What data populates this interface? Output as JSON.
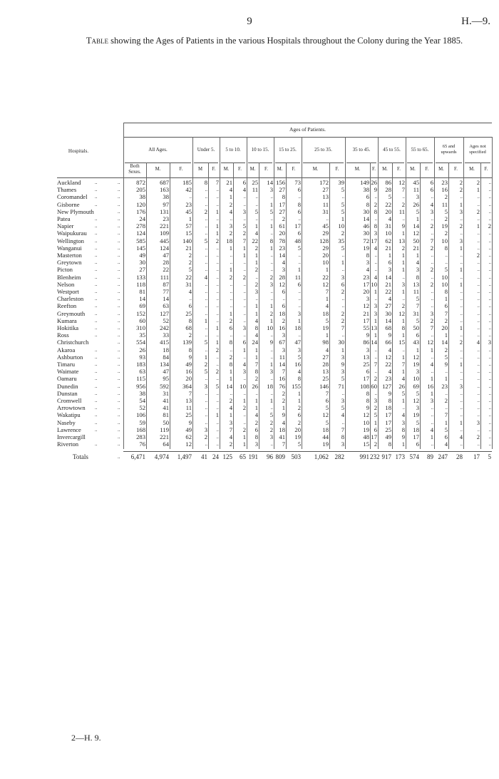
{
  "page": {
    "number": "9",
    "reference": "H.—9.",
    "footer": "2—H. 9."
  },
  "title": {
    "lead": "Table",
    "text": " showing the Ages of Patients in the various Hospitals throughout the Colony during the Year 1885."
  },
  "table": {
    "super_header": "Ages of Patients.",
    "hospitals_header": "Hospitals.",
    "groups": [
      "All Ages.",
      "Under 5.",
      "5 to 10.",
      "10 to 15.",
      "15 to 25.",
      "25 to 35.",
      "35 to 45.",
      "45 to 55.",
      "55 to 65.",
      "65 and upwards",
      "Ages not specified"
    ],
    "subheaders": [
      "Both Sexes.",
      "M.",
      "F.",
      "M",
      "F.",
      "M.",
      "F.",
      "M.",
      "F.",
      "M.",
      "F.",
      "M.",
      "F.",
      "M.",
      "F.",
      "M.",
      "F.",
      "M.",
      "F.",
      "M.",
      "F.",
      "M.",
      "F."
    ],
    "leader": "..",
    "rows": [
      {
        "name": "Auckland",
        "values": [
          "872",
          "687",
          "185",
          "8",
          "7",
          "21",
          "6",
          "25",
          "14",
          "156",
          "73",
          "172",
          "39",
          "149",
          "26",
          "86",
          "12",
          "45",
          "6",
          "23",
          "2",
          "2",
          ".."
        ]
      },
      {
        "name": "Thames",
        "values": [
          "205",
          "163",
          "42",
          "..",
          "..",
          "4",
          "4",
          "11",
          "3",
          "27",
          "6",
          "27",
          "5",
          "38",
          "9",
          "28",
          "7",
          "11",
          "6",
          "16",
          "2",
          "1",
          ".."
        ]
      },
      {
        "name": "Coromandel",
        "values": [
          "38",
          "38",
          "..",
          "..",
          "..",
          "1",
          "..",
          "..",
          "..",
          "8",
          "..",
          "13",
          "..",
          "6",
          "..",
          "5",
          "..",
          "3",
          "..",
          "2",
          "..",
          "..",
          ".."
        ]
      },
      {
        "name": "Gisborne",
        "values": [
          "120",
          "97",
          "23",
          "..",
          "..",
          "2",
          "..",
          "..",
          "1",
          "17",
          "8",
          "11",
          "5",
          "8",
          "2",
          "22",
          "2",
          "26",
          "4",
          "11",
          "1",
          "..",
          ".."
        ]
      },
      {
        "name": "New Plymouth",
        "values": [
          "176",
          "131",
          "45",
          "2",
          "1",
          "4",
          "3",
          "5",
          "5",
          "27",
          "6",
          "31",
          "5",
          "30",
          "8",
          "20",
          "11",
          "5",
          "3",
          "5",
          "3",
          "2",
          ".."
        ]
      },
      {
        "name": "Patea",
        "values": [
          "24",
          "23",
          "1",
          "..",
          "..",
          "..",
          "..",
          "..",
          "..",
          "2",
          "..",
          "..",
          "1",
          "14",
          "..",
          "4",
          "..",
          "1",
          "..",
          "2",
          "..",
          "..",
          ".."
        ]
      },
      {
        "name": "Napier",
        "values": [
          "278",
          "221",
          "57",
          "..",
          "1",
          "3",
          "5",
          "1",
          "1",
          "61",
          "17",
          "45",
          "10",
          "46",
          "8",
          "31",
          "9",
          "14",
          "2",
          "19",
          "2",
          "1",
          "2"
        ]
      },
      {
        "name": "Waipukurau",
        "values": [
          "124",
          "109",
          "15",
          "..",
          "1",
          "2",
          "2",
          "4",
          "..",
          "20",
          "6",
          "29",
          "2",
          "30",
          "3",
          "10",
          "1",
          "12",
          "..",
          "2",
          "..",
          "..",
          ".."
        ]
      },
      {
        "name": "Wellington",
        "values": [
          "585",
          "445",
          "140",
          "5",
          "2",
          "18",
          "7",
          "22",
          "8",
          "78",
          "48",
          "128",
          "35",
          "72",
          "17",
          "62",
          "13",
          "50",
          "7",
          "10",
          "3",
          "..",
          ".."
        ]
      },
      {
        "name": "Wanganui",
        "values": [
          "145",
          "124",
          "21",
          "..",
          "..",
          "1",
          "1",
          "2",
          "1",
          "23",
          "5",
          "29",
          "5",
          "19",
          "4",
          "21",
          "2",
          "21",
          "2",
          "8",
          "1",
          "..",
          ".."
        ]
      },
      {
        "name": "Masterton",
        "values": [
          "49",
          "47",
          "2",
          "..",
          "..",
          "..",
          "1",
          "1",
          "..",
          "14",
          "..",
          "20",
          "..",
          "8",
          "..",
          "1",
          "1",
          "1",
          "..",
          "..",
          "..",
          "2",
          ".."
        ]
      },
      {
        "name": "Greytown",
        "values": [
          "30",
          "28",
          "2",
          "..",
          "..",
          "..",
          "..",
          "1",
          "..",
          "4",
          "..",
          "10",
          "1",
          "3",
          "..",
          "6",
          "1",
          "4",
          "..",
          "..",
          "..",
          "..",
          ".."
        ]
      },
      {
        "name": "Picton",
        "values": [
          "27",
          "22",
          "5",
          "..",
          "..",
          "1",
          "..",
          "2",
          "..",
          "3",
          "1",
          "1",
          "..",
          "4",
          "..",
          "3",
          "1",
          "3",
          "2",
          "5",
          "1",
          "..",
          ".."
        ]
      },
      {
        "name": "Blenheim",
        "values": [
          "133",
          "111",
          "22",
          "4",
          "..",
          "2",
          "2",
          "..",
          "2",
          "28",
          "11",
          "22",
          "3",
          "23",
          "4",
          "14",
          "..",
          "8",
          "..",
          "10",
          "..",
          "..",
          ".."
        ]
      },
      {
        "name": "Nelson",
        "values": [
          "118",
          "87",
          "31",
          "..",
          "..",
          "..",
          "..",
          "2",
          "3",
          "12",
          "6",
          "12",
          "6",
          "17",
          "10",
          "21",
          "3",
          "13",
          "2",
          "10",
          "1",
          "..",
          ".."
        ]
      },
      {
        "name": "Westport",
        "values": [
          "81",
          "77",
          "4",
          "..",
          "..",
          "..",
          "..",
          "3",
          "..",
          "6",
          "..",
          "7",
          "2",
          "20",
          "1",
          "22",
          "1",
          "11",
          "..",
          "8",
          "..",
          "..",
          ".."
        ]
      },
      {
        "name": "Charleston",
        "values": [
          "14",
          "14",
          "..",
          "..",
          "..",
          "..",
          "..",
          "..",
          "..",
          "..",
          "..",
          "1",
          "..",
          "3",
          "..",
          "4",
          "..",
          "5",
          "..",
          "1",
          "..",
          "..",
          ".."
        ]
      },
      {
        "name": "Reefton",
        "values": [
          "69",
          "63",
          "6",
          "..",
          "..",
          "..",
          "..",
          "1",
          "1",
          "6",
          "..",
          "4",
          "..",
          "12",
          "3",
          "27",
          "2",
          "7",
          "..",
          "6",
          "..",
          "..",
          ".."
        ]
      },
      {
        "name": "Greymouth",
        "values": [
          "152",
          "127",
          "25",
          "..",
          "..",
          "1",
          "..",
          "1",
          "2",
          "18",
          "3",
          "18",
          "2",
          "21",
          "3",
          "30",
          "12",
          "31",
          "3",
          "7",
          "..",
          "..",
          ".."
        ]
      },
      {
        "name": "Kumara",
        "values": [
          "60",
          "52",
          "8",
          "1",
          "..",
          "2",
          "..",
          "4",
          "1",
          "2",
          "1",
          "5",
          "2",
          "17",
          "1",
          "14",
          "1",
          "5",
          "2",
          "2",
          "..",
          "..",
          ".."
        ]
      },
      {
        "name": "Hokitika",
        "values": [
          "310",
          "242",
          "68",
          "..",
          "1",
          "6",
          "3",
          "8",
          "10",
          "16",
          "18",
          "19",
          "7",
          "55",
          "13",
          "68",
          "8",
          "50",
          "7",
          "20",
          "1",
          "..",
          ".."
        ]
      },
      {
        "name": "Ross",
        "values": [
          "35",
          "33",
          "2",
          "..",
          "..",
          "..",
          "..",
          "4",
          "..",
          "3",
          "..",
          "1",
          "..",
          "9",
          "1",
          "9",
          "1",
          "6",
          "..",
          "1",
          "..",
          "..",
          ".."
        ]
      },
      {
        "name": "Christchurch",
        "values": [
          "554",
          "415",
          "139",
          "5",
          "1",
          "8",
          "6",
          "24",
          "9",
          "67",
          "47",
          "98",
          "30",
          "86",
          "14",
          "66",
          "15",
          "43",
          "12",
          "14",
          "2",
          "4",
          "3"
        ]
      },
      {
        "name": "Akaroa",
        "values": [
          "26",
          "18",
          "8",
          "..",
          "2",
          "..",
          "1",
          "1",
          "..",
          "3",
          "3",
          "4",
          "1",
          "3",
          "..",
          "4",
          "..",
          "1",
          "1",
          "2",
          "..",
          "..",
          ".."
        ]
      },
      {
        "name": "Ashburton",
        "values": [
          "93",
          "84",
          "9",
          "1",
          "..",
          "2",
          "..",
          "1",
          "..",
          "11",
          "5",
          "27",
          "3",
          "13",
          "..",
          "12",
          "1",
          "12",
          "..",
          "5",
          "..",
          "..",
          ".."
        ]
      },
      {
        "name": "Timaru",
        "values": [
          "183",
          "134",
          "49",
          "2",
          "..",
          "8",
          "4",
          "7",
          "1",
          "14",
          "16",
          "28",
          "9",
          "25",
          "7",
          "22",
          "7",
          "19",
          "4",
          "9",
          "1",
          "..",
          ".."
        ]
      },
      {
        "name": "Waimate",
        "values": [
          "63",
          "47",
          "16",
          "5",
          "2",
          "1",
          "3",
          "8",
          "3",
          "7",
          "4",
          "13",
          "3",
          "6",
          "..",
          "4",
          "1",
          "3",
          "..",
          "..",
          "..",
          "..",
          ".."
        ]
      },
      {
        "name": "Oamaru",
        "values": [
          "115",
          "95",
          "20",
          "..",
          "..",
          "1",
          "..",
          "2",
          "..",
          "16",
          "8",
          "25",
          "5",
          "17",
          "2",
          "23",
          "4",
          "10",
          "1",
          "1",
          "..",
          "..",
          ".."
        ]
      },
      {
        "name": "Dunedin",
        "values": [
          "956",
          "592",
          "364",
          "3",
          "5",
          "14",
          "10",
          "26",
          "18",
          "76",
          "155",
          "146",
          "71",
          "108",
          "60",
          "127",
          "26",
          "69",
          "16",
          "23",
          "3",
          "..",
          ".."
        ]
      },
      {
        "name": "Dunstan",
        "values": [
          "38",
          "31",
          "7",
          "..",
          "..",
          "..",
          "..",
          "..",
          "..",
          "2",
          "1",
          "7",
          "..",
          "8",
          "..",
          "9",
          "5",
          "5",
          "1",
          "..",
          "..",
          "..",
          ".."
        ]
      },
      {
        "name": "Cromwell",
        "values": [
          "54",
          "41",
          "13",
          "..",
          "..",
          "2",
          "1",
          "1",
          "1",
          "2",
          "1",
          "6",
          "3",
          "8",
          "3",
          "8",
          "1",
          "12",
          "3",
          "2",
          "..",
          "..",
          ".."
        ]
      },
      {
        "name": "Arrowtown",
        "values": [
          "52",
          "41",
          "11",
          "..",
          "..",
          "4",
          "2",
          "1",
          "..",
          "1",
          "2",
          "5",
          "5",
          "9",
          "2",
          "18",
          "..",
          "3",
          "..",
          "..",
          "..",
          "..",
          ".."
        ]
      },
      {
        "name": "Wakatipu",
        "values": [
          "106",
          "81",
          "25",
          "..",
          "1",
          "1",
          "..",
          "4",
          "5",
          "9",
          "6",
          "12",
          "4",
          "12",
          "5",
          "17",
          "4",
          "19",
          "..",
          "7",
          "..",
          "..",
          ".."
        ]
      },
      {
        "name": "Naseby",
        "values": [
          "59",
          "50",
          "9",
          "..",
          "..",
          "3",
          "..",
          "2",
          "2",
          "4",
          "2",
          "5",
          "..",
          "10",
          "1",
          "17",
          "3",
          "5",
          "..",
          "1",
          "1",
          "3",
          ".."
        ]
      },
      {
        "name": "Lawrence",
        "values": [
          "168",
          "119",
          "49",
          "3",
          "..",
          "7",
          "2",
          "6",
          "2",
          "18",
          "20",
          "18",
          "7",
          "19",
          "6",
          "25",
          "8",
          "18",
          "4",
          "5",
          "..",
          "..",
          ".."
        ]
      },
      {
        "name": "Invercargill",
        "values": [
          "283",
          "221",
          "62",
          "2",
          "..",
          "4",
          "1",
          "8",
          "3",
          "41",
          "19",
          "44",
          "8",
          "48",
          "17",
          "49",
          "9",
          "17",
          "1",
          "6",
          "4",
          "2",
          ".."
        ]
      },
      {
        "name": "Riverton",
        "values": [
          "76",
          "64",
          "12",
          "..",
          "..",
          "2",
          "1",
          "3",
          "..",
          "7",
          "5",
          "19",
          "3",
          "15",
          "2",
          "8",
          "1",
          "6",
          "..",
          "4",
          "..",
          "..",
          ".."
        ]
      }
    ],
    "totals": {
      "name": "Totals",
      "values": [
        "6,471",
        "4,974",
        "1,497",
        "41",
        "24",
        "125",
        "65",
        "191",
        "96",
        "809",
        "503",
        "1,062",
        "282",
        "991",
        "232",
        "917",
        "173",
        "574",
        "89",
        "247",
        "28",
        "17",
        "5"
      ]
    }
  }
}
